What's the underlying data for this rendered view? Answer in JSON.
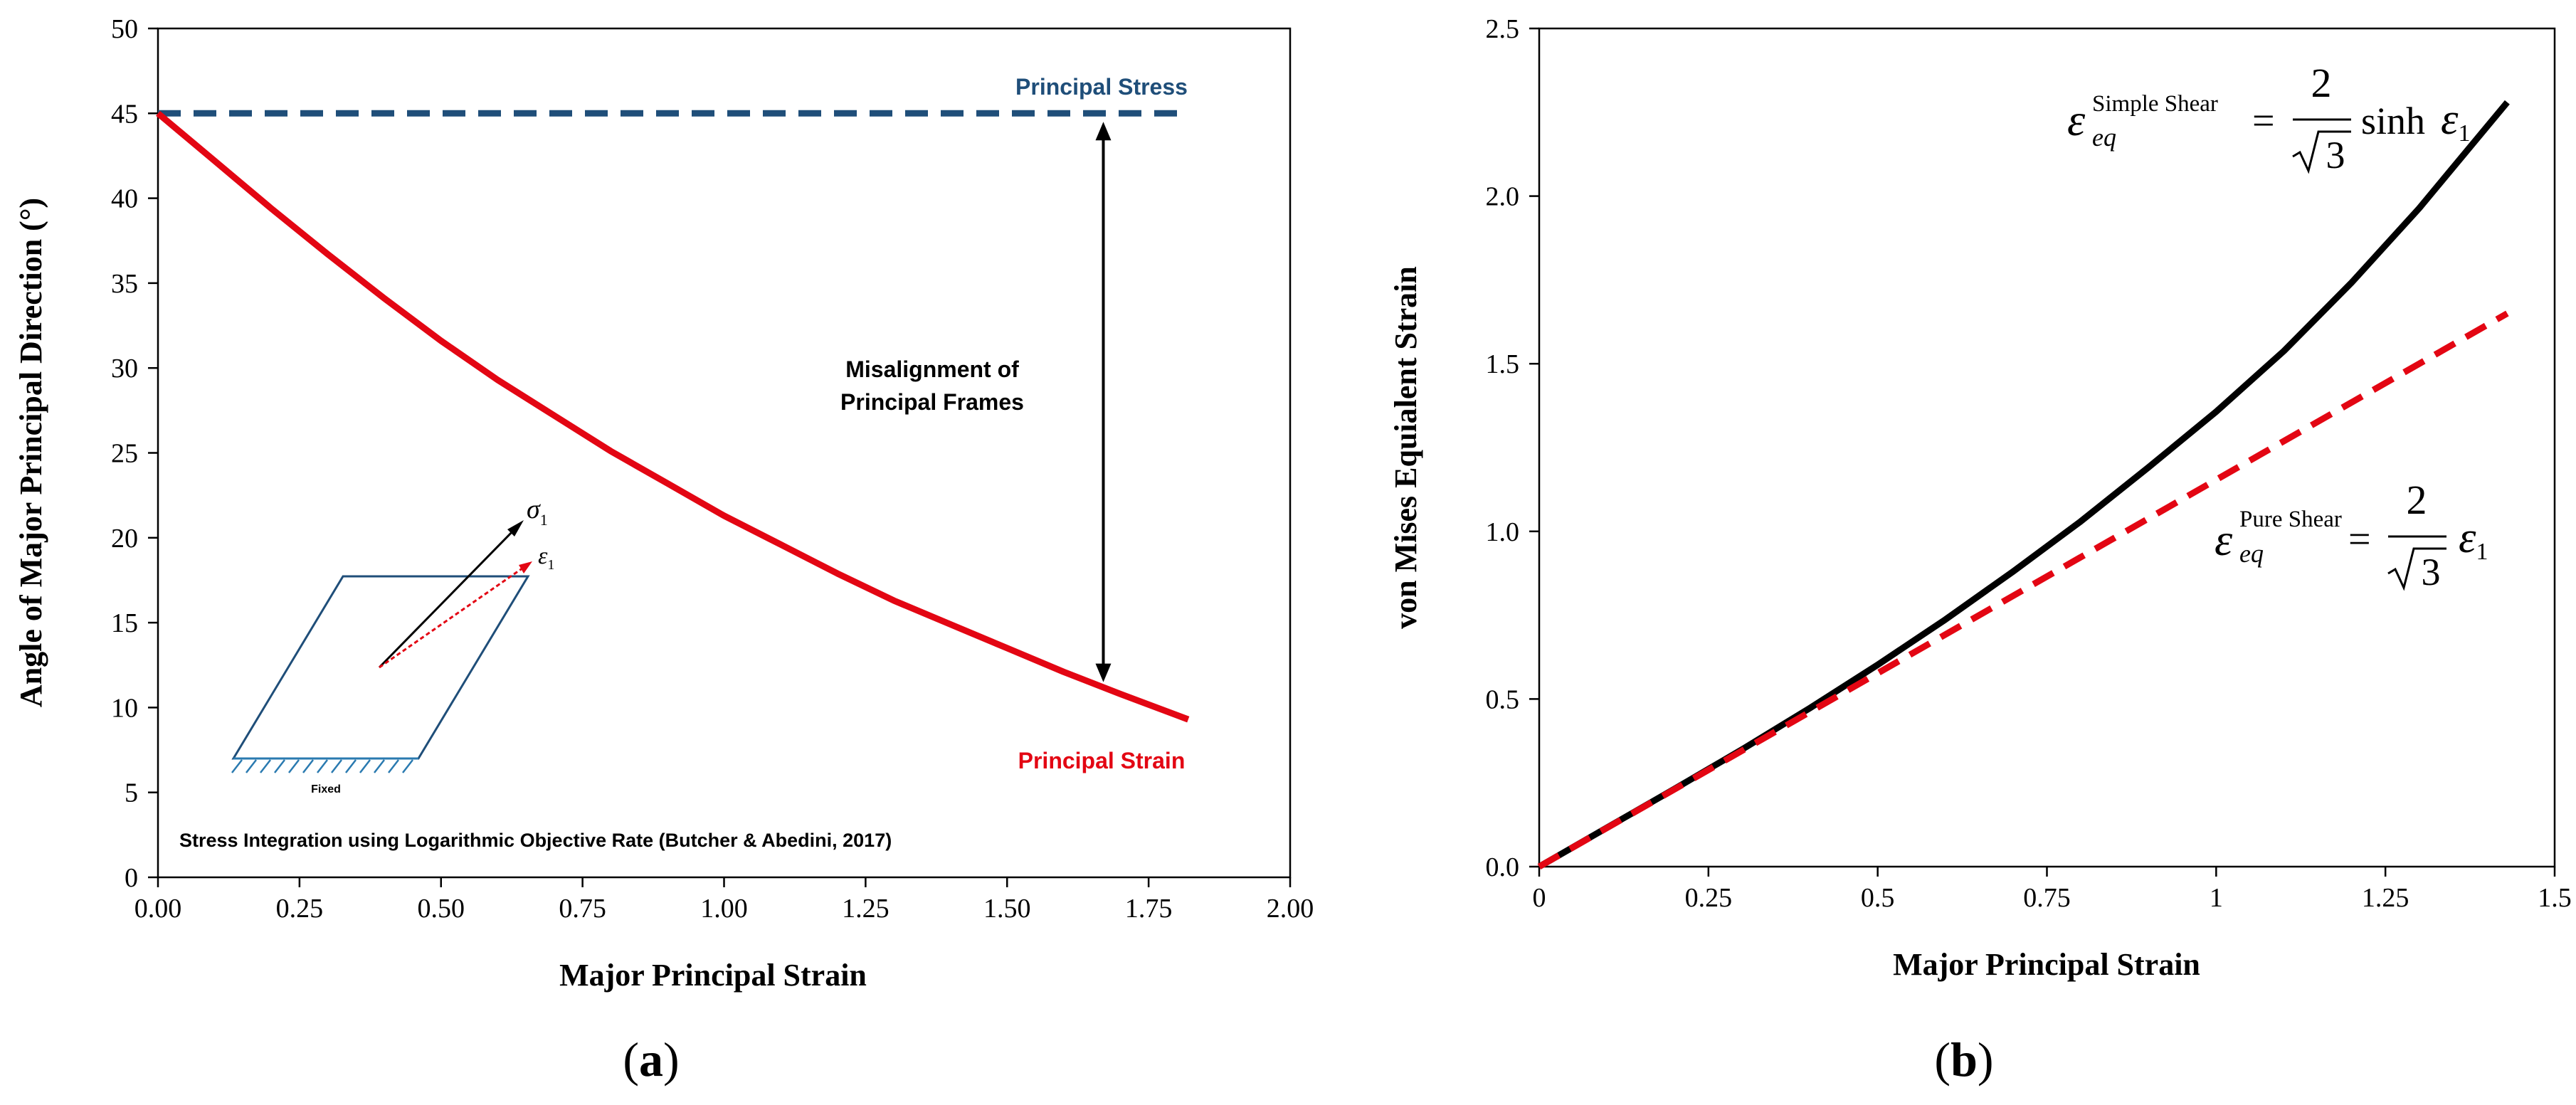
{
  "chart_data": [
    {
      "panel_label": "a",
      "type": "line",
      "xlabel": "Major Principal Strain",
      "ylabel": "Angle of Major Principal Direction (°)",
      "xlim": [
        0,
        2
      ],
      "ylim": [
        0,
        50
      ],
      "x_ticks": [
        "0.00",
        "0.25",
        "0.50",
        "0.75",
        "1.00",
        "1.25",
        "1.50",
        "1.75",
        "2.00"
      ],
      "y_ticks": [
        "0",
        "5",
        "10",
        "15",
        "20",
        "25",
        "30",
        "35",
        "40",
        "45",
        "50"
      ],
      "grid": false,
      "series": [
        {
          "name": "Principal Stress",
          "color": "#1F4E79",
          "style": "dashed",
          "x": [
            0,
            1.82
          ],
          "y": [
            45,
            45
          ]
        },
        {
          "name": "Principal Strain",
          "color": "#E30613",
          "style": "solid",
          "x": [
            0,
            0.1,
            0.2,
            0.3,
            0.4,
            0.5,
            0.6,
            0.7,
            0.8,
            0.9,
            1.0,
            1.1,
            1.2,
            1.3,
            1.4,
            1.5,
            1.6,
            1.7,
            1.82
          ],
          "y": [
            45,
            42.2,
            39.4,
            36.7,
            34.1,
            31.6,
            29.3,
            27.2,
            25.1,
            23.2,
            21.3,
            19.6,
            17.9,
            16.3,
            14.9,
            13.5,
            12.1,
            10.8,
            9.3
          ]
        }
      ],
      "annotations": {
        "misalignment_line1": "Misalignment of",
        "misalignment_line2": "Principal Frames",
        "misalignment_x": 1.67,
        "misalignment_y_top": 44.5,
        "misalignment_y_bottom": 11.5,
        "inset_sigma": "σ",
        "inset_sigma_sub": "1",
        "inset_epsilon": "ε",
        "inset_epsilon_sub": "1",
        "inset_fixed": "Fixed",
        "footnote": "Stress Integration using Logarithmic Objective Rate (Butcher & Abedini, 2017)"
      }
    },
    {
      "panel_label": "b",
      "type": "line",
      "xlabel": "Major Principal Strain",
      "ylabel": "von Mises Equialent Strain",
      "xlim": [
        0,
        1.5
      ],
      "ylim": [
        0,
        2.5
      ],
      "x_ticks": [
        "0",
        "0.25",
        "0.5",
        "0.75",
        "1",
        "1.25",
        "1.5"
      ],
      "y_ticks": [
        "0.0",
        "0.5",
        "1.0",
        "1.5",
        "2.0",
        "2.5"
      ],
      "grid": false,
      "series": [
        {
          "color": "#000000",
          "style": "solid",
          "x": [
            0,
            0.1,
            0.2,
            0.3,
            0.4,
            0.5,
            0.6,
            0.7,
            0.8,
            0.9,
            1.0,
            1.1,
            1.2,
            1.3,
            1.43
          ],
          "y": [
            0,
            0.116,
            0.232,
            0.35,
            0.473,
            0.602,
            0.737,
            0.88,
            1.03,
            1.191,
            1.357,
            1.538,
            1.742,
            1.964,
            2.28
          ]
        },
        {
          "color": "#E30613",
          "style": "dashed",
          "x": [
            0,
            1.43
          ],
          "y": [
            0,
            1.65
          ]
        }
      ],
      "annotations": {
        "simple_shear": {
          "var": "ε",
          "sup": "Simple Shear",
          "sub": "eq",
          "eq": "=",
          "num": "2",
          "den": "3",
          "func": "sinh",
          "tail": "ε",
          "tail_sub": "1"
        },
        "pure_shear": {
          "var": "ε",
          "sup": "Pure Shear",
          "sub": "eq",
          "eq": "=",
          "num": "2",
          "den": "3",
          "tail": "ε",
          "tail_sub": "1"
        }
      }
    }
  ]
}
